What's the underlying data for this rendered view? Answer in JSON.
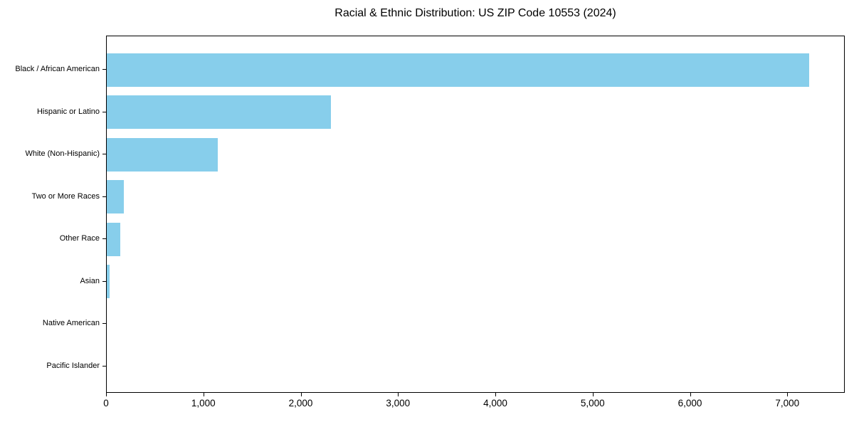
{
  "chart_data": {
    "type": "bar",
    "orientation": "horizontal",
    "title": "Racial & Ethnic Distribution: US ZIP Code 10553 (2024)",
    "categories": [
      "Black / African American",
      "Hispanic or Latino",
      "White (Non-Hispanic)",
      "Two or More Races",
      "Other Race",
      "Asian",
      "Native American",
      "Pacific Islander"
    ],
    "values": [
      7220,
      2300,
      1140,
      175,
      140,
      30,
      0,
      0
    ],
    "xlabel": "",
    "ylabel": "",
    "xlim": [
      0,
      7590
    ],
    "xticks": [
      0,
      1000,
      2000,
      3000,
      4000,
      5000,
      6000,
      7000
    ],
    "xtick_labels": [
      "0",
      "1,000",
      "2,000",
      "3,000",
      "4,000",
      "5,000",
      "6,000",
      "7,000"
    ],
    "bar_color": "#87CEEB",
    "axis_color": "#000000",
    "text_color": "#000000",
    "plot_background": "#ffffff",
    "grid": false,
    "legend": null
  }
}
